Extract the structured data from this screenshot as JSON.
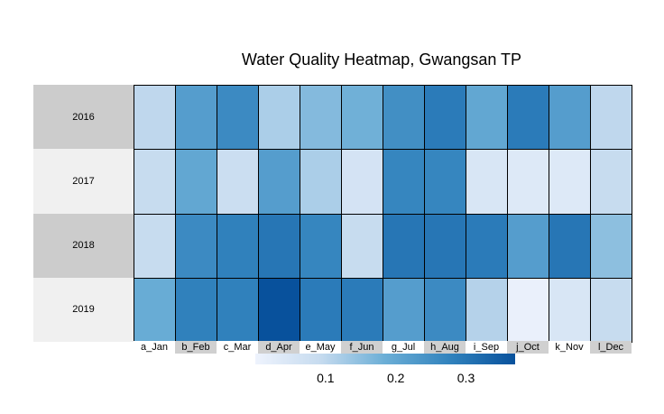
{
  "chart_data": {
    "type": "heatmap",
    "title": "Water Quality Heatmap, Gwangsan TP",
    "rows": [
      "2016",
      "2017",
      "2018",
      "2019"
    ],
    "columns": [
      "a_Jan",
      "b_Feb",
      "c_Mar",
      "d_Apr",
      "e_May",
      "f_Jun",
      "g_Jul",
      "h_Aug",
      "i_Sep",
      "j_Oct",
      "k_Nov",
      "l_Dec"
    ],
    "values": [
      [
        0.1,
        0.22,
        0.26,
        0.12,
        0.16,
        0.18,
        0.25,
        0.29,
        0.2,
        0.29,
        0.22,
        0.1
      ],
      [
        0.09,
        0.2,
        0.08,
        0.22,
        0.12,
        0.06,
        0.27,
        0.27,
        0.05,
        0.04,
        0.04,
        0.09
      ],
      [
        0.09,
        0.26,
        0.28,
        0.3,
        0.27,
        0.09,
        0.3,
        0.3,
        0.29,
        0.22,
        0.3,
        0.15
      ],
      [
        0.19,
        0.28,
        0.28,
        0.37,
        0.29,
        0.29,
        0.22,
        0.26,
        0.11,
        0.01,
        0.05,
        0.09
      ]
    ],
    "colorscale": {
      "min": 0.0,
      "max": 0.37,
      "low_color": "#eef3fd",
      "high_color": "#08519c"
    },
    "legend": {
      "position": "bottom",
      "ticks": [
        "0.1",
        "0.2",
        "0.3"
      ]
    }
  }
}
